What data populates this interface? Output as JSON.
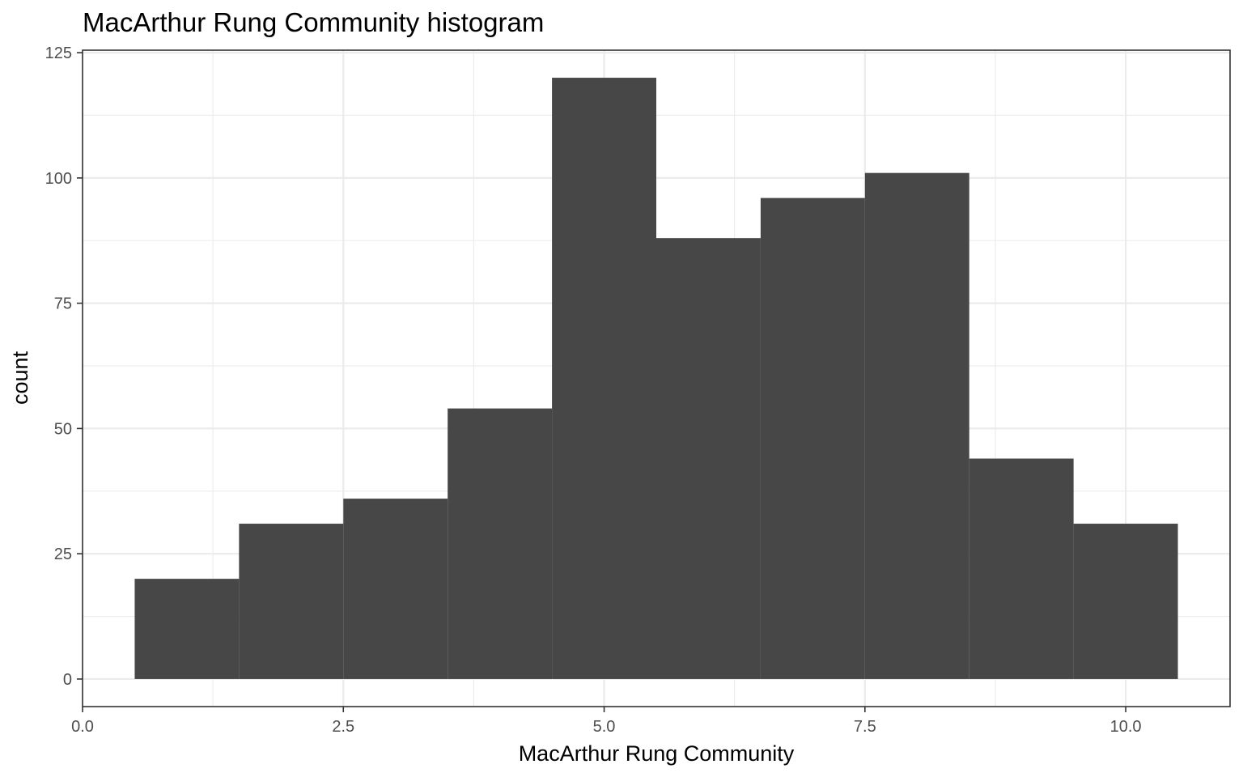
{
  "chart_data": {
    "type": "bar",
    "title": "MacArthur Rung Community histogram",
    "xlabel": "MacArthur Rung Community",
    "ylabel": "count",
    "xlim": [
      0,
      11
    ],
    "ylim": [
      -5.5,
      125.5
    ],
    "x_ticks": [
      0,
      2.5,
      5,
      7.5,
      10
    ],
    "x_tick_labels": [
      "0.0",
      "2.5",
      "5.0",
      "7.5",
      "10.0"
    ],
    "y_ticks": [
      0,
      25,
      50,
      75,
      100,
      125
    ],
    "y_tick_labels": [
      "0",
      "25",
      "50",
      "75",
      "100",
      "125"
    ],
    "bin_width": 1,
    "bins": [
      {
        "x": 1,
        "count": 20
      },
      {
        "x": 2,
        "count": 31
      },
      {
        "x": 3,
        "count": 36
      },
      {
        "x": 4,
        "count": 54
      },
      {
        "x": 5,
        "count": 120
      },
      {
        "x": 6,
        "count": 88
      },
      {
        "x": 7,
        "count": 96
      },
      {
        "x": 8,
        "count": 101
      },
      {
        "x": 9,
        "count": 44
      },
      {
        "x": 10,
        "count": 31
      }
    ],
    "bar_color": "#474747",
    "grid": true,
    "legend": "none"
  }
}
